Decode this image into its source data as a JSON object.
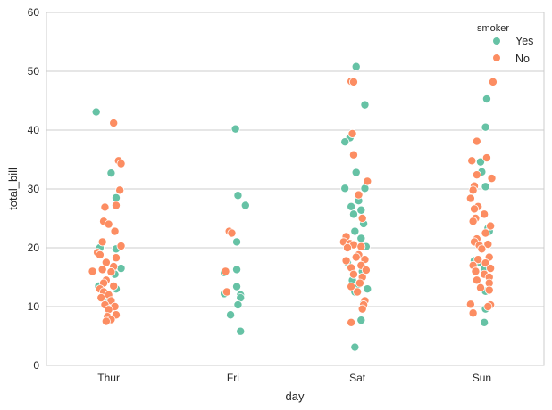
{
  "chart_data": {
    "type": "scatter",
    "subtype": "stripplot",
    "title": "",
    "xlabel": "day",
    "ylabel": "total_bill",
    "categories": [
      "Thur",
      "Fri",
      "Sat",
      "Sun"
    ],
    "ylim": [
      0,
      60
    ],
    "yticks": [
      0,
      10,
      20,
      30,
      40,
      50,
      60
    ],
    "grid": true,
    "legend": {
      "title": "smoker",
      "placement": "top-right",
      "entries": [
        {
          "label": "Yes",
          "color": "#66c2a5"
        },
        {
          "label": "No",
          "color": "#fc8d62"
        }
      ]
    },
    "series": [
      {
        "name": "Yes",
        "color": "#66c2a5",
        "points": [
          {
            "day": "Thur",
            "total_bill": 43.1,
            "jitter": -0.1
          },
          {
            "day": "Thur",
            "total_bill": 32.7,
            "jitter": 0.02
          },
          {
            "day": "Thur",
            "total_bill": 28.5,
            "jitter": 0.06
          },
          {
            "day": "Thur",
            "total_bill": 20.0,
            "jitter": -0.07
          },
          {
            "day": "Thur",
            "total_bill": 19.8,
            "jitter": 0.06
          },
          {
            "day": "Thur",
            "total_bill": 16.5,
            "jitter": 0.1
          },
          {
            "day": "Thur",
            "total_bill": 15.5,
            "jitter": 0.05
          },
          {
            "day": "Thur",
            "total_bill": 13.5,
            "jitter": -0.08
          },
          {
            "day": "Thur",
            "total_bill": 13.0,
            "jitter": 0.06
          },
          {
            "day": "Thur",
            "total_bill": 10.5,
            "jitter": -0.02
          },
          {
            "day": "Fri",
            "total_bill": 40.2,
            "jitter": 0.02
          },
          {
            "day": "Fri",
            "total_bill": 28.9,
            "jitter": 0.04
          },
          {
            "day": "Fri",
            "total_bill": 27.2,
            "jitter": 0.1
          },
          {
            "day": "Fri",
            "total_bill": 21.0,
            "jitter": 0.03
          },
          {
            "day": "Fri",
            "total_bill": 16.3,
            "jitter": 0.03
          },
          {
            "day": "Fri",
            "total_bill": 15.8,
            "jitter": -0.07
          },
          {
            "day": "Fri",
            "total_bill": 13.4,
            "jitter": 0.03
          },
          {
            "day": "Fri",
            "total_bill": 12.0,
            "jitter": 0.06
          },
          {
            "day": "Fri",
            "total_bill": 11.5,
            "jitter": 0.06
          },
          {
            "day": "Fri",
            "total_bill": 12.2,
            "jitter": -0.07
          },
          {
            "day": "Fri",
            "total_bill": 10.3,
            "jitter": 0.04
          },
          {
            "day": "Fri",
            "total_bill": 8.6,
            "jitter": -0.02
          },
          {
            "day": "Fri",
            "total_bill": 5.8,
            "jitter": 0.06
          },
          {
            "day": "Sat",
            "total_bill": 50.8,
            "jitter": -0.01
          },
          {
            "day": "Sat",
            "total_bill": 44.3,
            "jitter": 0.06
          },
          {
            "day": "Sat",
            "total_bill": 38.7,
            "jitter": -0.06
          },
          {
            "day": "Sat",
            "total_bill": 38.0,
            "jitter": -0.1
          },
          {
            "day": "Sat",
            "total_bill": 32.8,
            "jitter": -0.01
          },
          {
            "day": "Sat",
            "total_bill": 30.1,
            "jitter": -0.1
          },
          {
            "day": "Sat",
            "total_bill": 30.1,
            "jitter": 0.06
          },
          {
            "day": "Sat",
            "total_bill": 28.0,
            "jitter": 0.01
          },
          {
            "day": "Sat",
            "total_bill": 27.0,
            "jitter": -0.05
          },
          {
            "day": "Sat",
            "total_bill": 26.4,
            "jitter": 0.03
          },
          {
            "day": "Sat",
            "total_bill": 25.7,
            "jitter": -0.03
          },
          {
            "day": "Sat",
            "total_bill": 24.1,
            "jitter": 0.05
          },
          {
            "day": "Sat",
            "total_bill": 22.8,
            "jitter": -0.02
          },
          {
            "day": "Sat",
            "total_bill": 21.6,
            "jitter": 0.03
          },
          {
            "day": "Sat",
            "total_bill": 20.2,
            "jitter": 0.07
          },
          {
            "day": "Sat",
            "total_bill": 17.5,
            "jitter": -0.08
          },
          {
            "day": "Sat",
            "total_bill": 16.0,
            "jitter": 0.04
          },
          {
            "day": "Sat",
            "total_bill": 14.5,
            "jitter": -0.04
          },
          {
            "day": "Sat",
            "total_bill": 13.8,
            "jitter": 0.01
          },
          {
            "day": "Sat",
            "total_bill": 13.0,
            "jitter": 0.08
          },
          {
            "day": "Sat",
            "total_bill": 12.5,
            "jitter": -0.02
          },
          {
            "day": "Sat",
            "total_bill": 10.6,
            "jitter": 0.05
          },
          {
            "day": "Sat",
            "total_bill": 7.7,
            "jitter": 0.03
          },
          {
            "day": "Sat",
            "total_bill": 3.1,
            "jitter": -0.02
          },
          {
            "day": "Sun",
            "total_bill": 45.3,
            "jitter": 0.04
          },
          {
            "day": "Sun",
            "total_bill": 40.5,
            "jitter": 0.03
          },
          {
            "day": "Sun",
            "total_bill": 34.6,
            "jitter": -0.01
          },
          {
            "day": "Sun",
            "total_bill": 32.9,
            "jitter": 0.0
          },
          {
            "day": "Sun",
            "total_bill": 30.4,
            "jitter": 0.03
          },
          {
            "day": "Sun",
            "total_bill": 23.3,
            "jitter": 0.05
          },
          {
            "day": "Sun",
            "total_bill": 22.8,
            "jitter": 0.06
          },
          {
            "day": "Sun",
            "total_bill": 17.8,
            "jitter": -0.06
          },
          {
            "day": "Sun",
            "total_bill": 17.5,
            "jitter": -0.02
          },
          {
            "day": "Sun",
            "total_bill": 16.5,
            "jitter": 0.02
          },
          {
            "day": "Sun",
            "total_bill": 12.6,
            "jitter": 0.03
          },
          {
            "day": "Sun",
            "total_bill": 9.6,
            "jitter": 0.03
          },
          {
            "day": "Sun",
            "total_bill": 7.3,
            "jitter": 0.02
          }
        ]
      },
      {
        "name": "No",
        "color": "#fc8d62",
        "points": [
          {
            "day": "Thur",
            "total_bill": 41.2,
            "jitter": 0.04
          },
          {
            "day": "Thur",
            "total_bill": 34.8,
            "jitter": 0.08
          },
          {
            "day": "Thur",
            "total_bill": 34.3,
            "jitter": 0.1
          },
          {
            "day": "Thur",
            "total_bill": 29.8,
            "jitter": 0.09
          },
          {
            "day": "Thur",
            "total_bill": 27.2,
            "jitter": 0.06
          },
          {
            "day": "Thur",
            "total_bill": 26.9,
            "jitter": -0.03
          },
          {
            "day": "Thur",
            "total_bill": 24.5,
            "jitter": -0.04
          },
          {
            "day": "Thur",
            "total_bill": 24.0,
            "jitter": 0.0
          },
          {
            "day": "Thur",
            "total_bill": 22.8,
            "jitter": 0.05
          },
          {
            "day": "Thur",
            "total_bill": 21.0,
            "jitter": -0.05
          },
          {
            "day": "Thur",
            "total_bill": 20.3,
            "jitter": 0.1
          },
          {
            "day": "Thur",
            "total_bill": 19.2,
            "jitter": -0.09
          },
          {
            "day": "Thur",
            "total_bill": 18.8,
            "jitter": -0.07
          },
          {
            "day": "Thur",
            "total_bill": 18.3,
            "jitter": 0.06
          },
          {
            "day": "Thur",
            "total_bill": 17.5,
            "jitter": -0.02
          },
          {
            "day": "Thur",
            "total_bill": 16.8,
            "jitter": 0.04
          },
          {
            "day": "Thur",
            "total_bill": 16.3,
            "jitter": -0.05
          },
          {
            "day": "Thur",
            "total_bill": 16.0,
            "jitter": -0.13
          },
          {
            "day": "Thur",
            "total_bill": 15.9,
            "jitter": 0.02
          },
          {
            "day": "Thur",
            "total_bill": 14.5,
            "jitter": -0.02
          },
          {
            "day": "Thur",
            "total_bill": 14.0,
            "jitter": -0.04
          },
          {
            "day": "Thur",
            "total_bill": 13.5,
            "jitter": 0.04
          },
          {
            "day": "Thur",
            "total_bill": 13.0,
            "jitter": -0.07
          },
          {
            "day": "Thur",
            "total_bill": 12.5,
            "jitter": -0.04
          },
          {
            "day": "Thur",
            "total_bill": 12.0,
            "jitter": 0.0
          },
          {
            "day": "Thur",
            "total_bill": 11.5,
            "jitter": -0.06
          },
          {
            "day": "Thur",
            "total_bill": 11.0,
            "jitter": 0.02
          },
          {
            "day": "Thur",
            "total_bill": 10.3,
            "jitter": -0.03
          },
          {
            "day": "Thur",
            "total_bill": 10.0,
            "jitter": 0.05
          },
          {
            "day": "Thur",
            "total_bill": 9.5,
            "jitter": 0.0
          },
          {
            "day": "Thur",
            "total_bill": 8.6,
            "jitter": 0.06
          },
          {
            "day": "Thur",
            "total_bill": 8.3,
            "jitter": -0.01
          },
          {
            "day": "Thur",
            "total_bill": 7.8,
            "jitter": 0.02
          },
          {
            "day": "Thur",
            "total_bill": 7.5,
            "jitter": -0.02
          },
          {
            "day": "Fri",
            "total_bill": 22.8,
            "jitter": -0.03
          },
          {
            "day": "Fri",
            "total_bill": 22.5,
            "jitter": -0.01
          },
          {
            "day": "Fri",
            "total_bill": 16.0,
            "jitter": -0.06
          },
          {
            "day": "Fri",
            "total_bill": 12.5,
            "jitter": -0.05
          },
          {
            "day": "Sat",
            "total_bill": 48.3,
            "jitter": -0.05
          },
          {
            "day": "Sat",
            "total_bill": 48.2,
            "jitter": -0.03
          },
          {
            "day": "Sat",
            "total_bill": 39.4,
            "jitter": -0.04
          },
          {
            "day": "Sat",
            "total_bill": 35.8,
            "jitter": -0.03
          },
          {
            "day": "Sat",
            "total_bill": 31.3,
            "jitter": 0.08
          },
          {
            "day": "Sat",
            "total_bill": 29.0,
            "jitter": 0.01
          },
          {
            "day": "Sat",
            "total_bill": 25.0,
            "jitter": 0.04
          },
          {
            "day": "Sat",
            "total_bill": 21.9,
            "jitter": -0.09
          },
          {
            "day": "Sat",
            "total_bill": 21.0,
            "jitter": -0.11
          },
          {
            "day": "Sat",
            "total_bill": 20.7,
            "jitter": -0.06
          },
          {
            "day": "Sat",
            "total_bill": 20.5,
            "jitter": -0.03
          },
          {
            "day": "Sat",
            "total_bill": 20.2,
            "jitter": 0.03
          },
          {
            "day": "Sat",
            "total_bill": 20.0,
            "jitter": -0.08
          },
          {
            "day": "Sat",
            "total_bill": 18.8,
            "jitter": 0.01
          },
          {
            "day": "Sat",
            "total_bill": 18.4,
            "jitter": -0.01
          },
          {
            "day": "Sat",
            "total_bill": 18.0,
            "jitter": 0.06
          },
          {
            "day": "Sat",
            "total_bill": 17.8,
            "jitter": -0.09
          },
          {
            "day": "Sat",
            "total_bill": 17.0,
            "jitter": 0.03
          },
          {
            "day": "Sat",
            "total_bill": 16.6,
            "jitter": -0.05
          },
          {
            "day": "Sat",
            "total_bill": 16.2,
            "jitter": 0.07
          },
          {
            "day": "Sat",
            "total_bill": 15.5,
            "jitter": -0.03
          },
          {
            "day": "Sat",
            "total_bill": 15.0,
            "jitter": 0.04
          },
          {
            "day": "Sat",
            "total_bill": 14.0,
            "jitter": 0.02
          },
          {
            "day": "Sat",
            "total_bill": 13.4,
            "jitter": -0.05
          },
          {
            "day": "Sat",
            "total_bill": 12.5,
            "jitter": 0.0
          },
          {
            "day": "Sat",
            "total_bill": 11.0,
            "jitter": 0.06
          },
          {
            "day": "Sat",
            "total_bill": 10.3,
            "jitter": 0.05
          },
          {
            "day": "Sat",
            "total_bill": 9.6,
            "jitter": 0.04
          },
          {
            "day": "Sat",
            "total_bill": 7.3,
            "jitter": -0.05
          },
          {
            "day": "Sun",
            "total_bill": 48.2,
            "jitter": 0.09
          },
          {
            "day": "Sun",
            "total_bill": 38.1,
            "jitter": -0.04
          },
          {
            "day": "Sun",
            "total_bill": 35.3,
            "jitter": 0.04
          },
          {
            "day": "Sun",
            "total_bill": 34.8,
            "jitter": -0.08
          },
          {
            "day": "Sun",
            "total_bill": 32.4,
            "jitter": -0.04
          },
          {
            "day": "Sun",
            "total_bill": 31.8,
            "jitter": 0.08
          },
          {
            "day": "Sun",
            "total_bill": 30.5,
            "jitter": -0.06
          },
          {
            "day": "Sun",
            "total_bill": 29.8,
            "jitter": -0.07
          },
          {
            "day": "Sun",
            "total_bill": 28.4,
            "jitter": -0.09
          },
          {
            "day": "Sun",
            "total_bill": 27.0,
            "jitter": -0.03
          },
          {
            "day": "Sun",
            "total_bill": 26.6,
            "jitter": -0.06
          },
          {
            "day": "Sun",
            "total_bill": 25.7,
            "jitter": 0.02
          },
          {
            "day": "Sun",
            "total_bill": 25.0,
            "jitter": -0.05
          },
          {
            "day": "Sun",
            "total_bill": 24.5,
            "jitter": -0.07
          },
          {
            "day": "Sun",
            "total_bill": 23.7,
            "jitter": 0.07
          },
          {
            "day": "Sun",
            "total_bill": 22.5,
            "jitter": 0.03
          },
          {
            "day": "Sun",
            "total_bill": 21.5,
            "jitter": -0.04
          },
          {
            "day": "Sun",
            "total_bill": 21.0,
            "jitter": -0.06
          },
          {
            "day": "Sun",
            "total_bill": 20.6,
            "jitter": 0.05
          },
          {
            "day": "Sun",
            "total_bill": 20.4,
            "jitter": -0.02
          },
          {
            "day": "Sun",
            "total_bill": 19.8,
            "jitter": 0.0
          },
          {
            "day": "Sun",
            "total_bill": 18.4,
            "jitter": 0.06
          },
          {
            "day": "Sun",
            "total_bill": 18.0,
            "jitter": -0.03
          },
          {
            "day": "Sun",
            "total_bill": 17.4,
            "jitter": 0.03
          },
          {
            "day": "Sun",
            "total_bill": 17.0,
            "jitter": -0.07
          },
          {
            "day": "Sun",
            "total_bill": 16.5,
            "jitter": 0.07
          },
          {
            "day": "Sun",
            "total_bill": 16.0,
            "jitter": -0.05
          },
          {
            "day": "Sun",
            "total_bill": 15.5,
            "jitter": 0.02
          },
          {
            "day": "Sun",
            "total_bill": 15.0,
            "jitter": 0.06
          },
          {
            "day": "Sun",
            "total_bill": 14.5,
            "jitter": -0.04
          },
          {
            "day": "Sun",
            "total_bill": 14.0,
            "jitter": 0.06
          },
          {
            "day": "Sun",
            "total_bill": 13.2,
            "jitter": -0.01
          },
          {
            "day": "Sun",
            "total_bill": 12.8,
            "jitter": 0.06
          },
          {
            "day": "Sun",
            "total_bill": 10.4,
            "jitter": -0.09
          },
          {
            "day": "Sun",
            "total_bill": 10.3,
            "jitter": 0.07
          },
          {
            "day": "Sun",
            "total_bill": 10.0,
            "jitter": 0.05
          },
          {
            "day": "Sun",
            "total_bill": 8.9,
            "jitter": -0.07
          }
        ]
      }
    ]
  }
}
